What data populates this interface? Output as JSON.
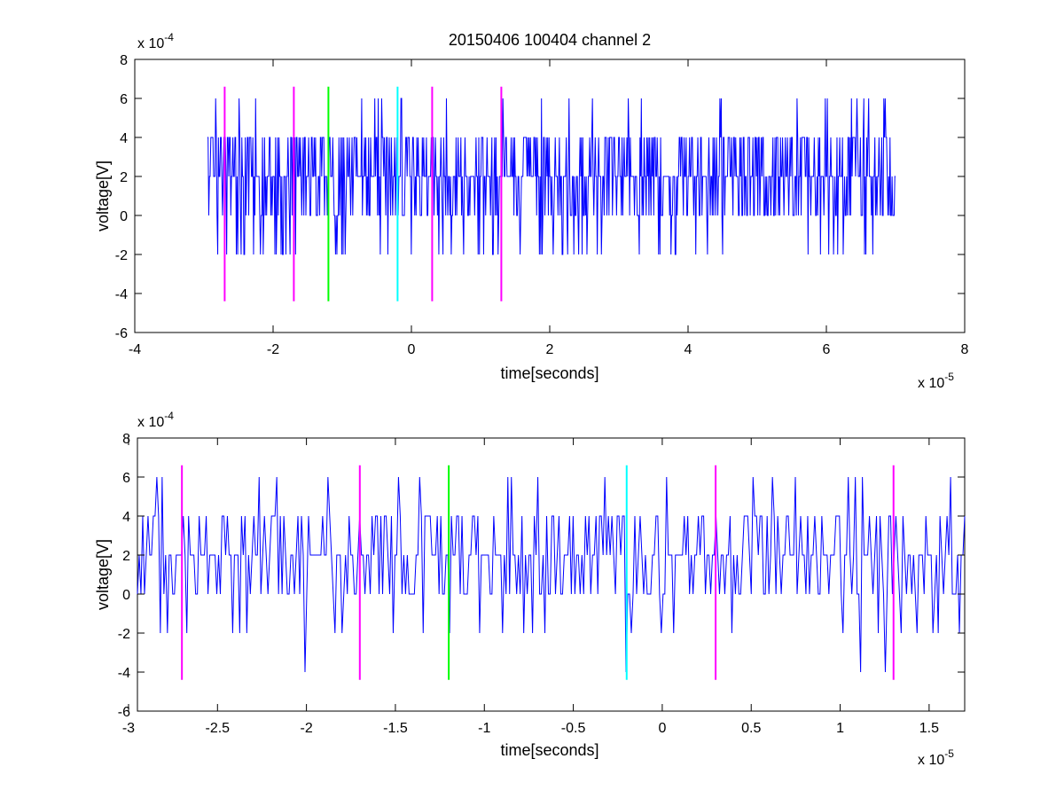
{
  "figure": {
    "title": "20150406 100404 channel 2"
  },
  "colors": {
    "signal": "#0000ff",
    "magenta": "#ff00ff",
    "green": "#00ff00",
    "cyan": "#00ffff",
    "axis": "#000000",
    "background": "#ffffff"
  },
  "chart_data": [
    {
      "type": "line",
      "title": "20150406 100404 channel 2",
      "xlabel": "time[seconds]",
      "ylabel": "voltage[V]",
      "x_scale_label": "x 10",
      "x_scale_exp": "-5",
      "y_scale_label": "x 10",
      "y_scale_exp": "-4",
      "xlim": [
        -4,
        8
      ],
      "ylim": [
        -6,
        8
      ],
      "xticks": [
        -4,
        -2,
        0,
        2,
        4,
        6,
        8
      ],
      "yticks": [
        -6,
        -4,
        -2,
        0,
        2,
        4,
        6,
        8
      ],
      "xtick_labels": [
        "-4",
        "-2",
        "0",
        "2",
        "4",
        "6",
        "8"
      ],
      "ytick_labels": [
        "-6",
        "-4",
        "-2",
        "0",
        "2",
        "4",
        "6",
        "8"
      ],
      "grid": false,
      "series": [
        {
          "color": "#0000ff",
          "x_range": [
            -2.95,
            7.0
          ],
          "y_levels": [
            -2,
            0,
            2,
            4,
            6
          ]
        }
      ],
      "markers": [
        {
          "x": -2.7,
          "y_range": [
            -4.4,
            6.6
          ],
          "color": "#ff00ff"
        },
        {
          "x": -1.7,
          "y_range": [
            -4.4,
            6.6
          ],
          "color": "#ff00ff"
        },
        {
          "x": -1.2,
          "y_range": [
            -4.4,
            6.6
          ],
          "color": "#00ff00"
        },
        {
          "x": -0.2,
          "y_range": [
            -4.4,
            6.6
          ],
          "color": "#00ffff"
        },
        {
          "x": 0.3,
          "y_range": [
            -4.4,
            6.6
          ],
          "color": "#ff00ff"
        },
        {
          "x": 1.3,
          "y_range": [
            -4.4,
            6.6
          ],
          "color": "#ff00ff"
        }
      ]
    },
    {
      "type": "line",
      "title": "",
      "xlabel": "time[seconds]",
      "ylabel": "voltage[V]",
      "x_scale_label": "x 10",
      "x_scale_exp": "-5",
      "y_scale_label": "x 10",
      "y_scale_exp": "-4",
      "xlim": [
        -2.95,
        1.7
      ],
      "ylim": [
        -6,
        8
      ],
      "xticks": [
        -3,
        -2.5,
        -2,
        -1.5,
        -1,
        -0.5,
        0,
        0.5,
        1,
        1.5
      ],
      "yticks": [
        -6,
        -4,
        -2,
        0,
        2,
        4,
        6,
        8
      ],
      "xtick_labels": [
        "-3",
        "-2.5",
        "-2",
        "-1.5",
        "-1",
        "-0.5",
        "0",
        "0.5",
        "1",
        "1.5"
      ],
      "ytick_labels": [
        "-6",
        "-4",
        "-2",
        "0",
        "2",
        "4",
        "6",
        "8"
      ],
      "grid": false,
      "series": [
        {
          "color": "#0000ff",
          "x_range": [
            -2.95,
            1.7
          ],
          "y_levels": [
            -4,
            -2,
            0,
            2,
            4,
            6
          ]
        }
      ],
      "markers": [
        {
          "x": -2.7,
          "y_range": [
            -4.4,
            6.6
          ],
          "color": "#ff00ff"
        },
        {
          "x": -1.7,
          "y_range": [
            -4.4,
            6.6
          ],
          "color": "#ff00ff"
        },
        {
          "x": -1.2,
          "y_range": [
            -4.4,
            6.6
          ],
          "color": "#00ff00"
        },
        {
          "x": -0.2,
          "y_range": [
            -4.4,
            6.6
          ],
          "color": "#00ffff"
        },
        {
          "x": 0.3,
          "y_range": [
            -4.4,
            6.6
          ],
          "color": "#ff00ff"
        },
        {
          "x": 1.3,
          "y_range": [
            -4.4,
            6.6
          ],
          "color": "#ff00ff"
        }
      ]
    }
  ]
}
